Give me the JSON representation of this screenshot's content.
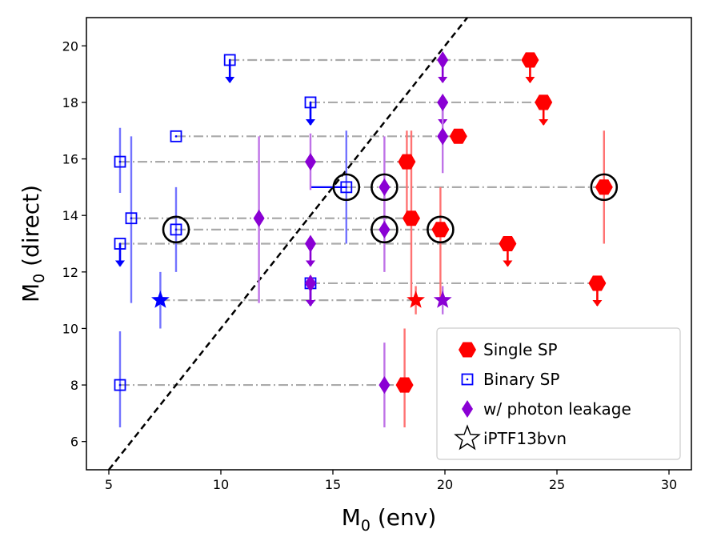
{
  "chart_data": {
    "type": "scatter",
    "title": "",
    "xlabel": "M",
    "xlabel_sub": "0",
    "xlabel_rest": " (env)",
    "ylabel": "M",
    "ylabel_sub": "0",
    "ylabel_rest": " (direct)",
    "xlim": [
      4,
      31
    ],
    "ylim": [
      5,
      21
    ],
    "xticks": [
      5,
      10,
      15,
      20,
      25,
      30
    ],
    "yticks": [
      6,
      8,
      10,
      12,
      14,
      16,
      18,
      20
    ],
    "grid": false,
    "legend_position": "lower-right",
    "diagonal": {
      "x": [
        5,
        21
      ],
      "y": [
        5,
        21
      ],
      "style": "dashed",
      "color": "#000000"
    },
    "colors": {
      "single": "#ff0000",
      "binary": "#0000ff",
      "leakage": "#8a00d4",
      "connector": "#aaaaaa",
      "circle": "#000000"
    },
    "legend": [
      {
        "label": "Single SP",
        "marker": "hexagon",
        "color": "#ff0000"
      },
      {
        "label": "Binary SP",
        "marker": "square",
        "color": "#0000ff"
      },
      {
        "label": "w/ photon leakage",
        "marker": "diamond",
        "color": "#8a00d4"
      },
      {
        "label": "iPTF13bvn",
        "marker": "star-outline",
        "color": "#000000"
      }
    ],
    "connectors": [
      {
        "x1": 10.4,
        "x2": 23.8,
        "y": 19.5
      },
      {
        "x1": 14.0,
        "x2": 24.4,
        "y": 18.0
      },
      {
        "x1": 8.0,
        "x2": 20.6,
        "y": 16.8
      },
      {
        "x1": 5.5,
        "x2": 18.3,
        "y": 15.9
      },
      {
        "x1": 15.6,
        "x2": 27.1,
        "y": 15.0
      },
      {
        "x1": 6.0,
        "x2": 18.5,
        "y": 13.9
      },
      {
        "x1": 8.0,
        "x2": 19.8,
        "y": 13.5
      },
      {
        "x1": 5.5,
        "x2": 22.8,
        "y": 13.0
      },
      {
        "x1": 14.0,
        "x2": 26.8,
        "y": 11.6
      },
      {
        "x1": 7.3,
        "x2": 18.7,
        "y": 11.0
      },
      {
        "x1": 5.5,
        "x2": 18.2,
        "y": 8.0
      }
    ],
    "series": [
      {
        "name": "Single SP",
        "marker": "hexagon",
        "points": [
          {
            "x": 23.8,
            "y": 19.5,
            "upper_limit": true
          },
          {
            "x": 24.4,
            "y": 18.0,
            "upper_limit": true
          },
          {
            "x": 20.6,
            "y": 16.8
          },
          {
            "x": 18.3,
            "y": 15.9,
            "yerr": [
              14.0,
              17.0
            ]
          },
          {
            "x": 27.1,
            "y": 15.0,
            "yerr": [
              13.0,
              17.0
            ],
            "circled": true
          },
          {
            "x": 18.5,
            "y": 13.9,
            "yerr": [
              11.0,
              17.0
            ]
          },
          {
            "x": 19.8,
            "y": 13.5,
            "yerr": [
              11.0,
              15.0
            ],
            "circled": true
          },
          {
            "x": 22.8,
            "y": 13.0,
            "upper_limit": true
          },
          {
            "x": 26.8,
            "y": 11.6,
            "upper_limit": true
          },
          {
            "x": 18.2,
            "y": 8.0,
            "yerr": [
              6.5,
              10.0
            ]
          }
        ]
      },
      {
        "name": "Binary SP",
        "marker": "square",
        "points": [
          {
            "x": 10.4,
            "y": 19.5,
            "upper_limit": true
          },
          {
            "x": 14.0,
            "y": 18.0,
            "upper_limit": true
          },
          {
            "x": 8.0,
            "y": 16.8
          },
          {
            "x": 5.5,
            "y": 15.9,
            "yerr": [
              14.8,
              17.1
            ]
          },
          {
            "x": 15.6,
            "y": 15.0,
            "yerr": [
              13.0,
              17.0
            ],
            "xerr": [
              14.0,
              15.6
            ],
            "circled": true
          },
          {
            "x": 6.0,
            "y": 13.9,
            "yerr": [
              10.9,
              16.8
            ]
          },
          {
            "x": 8.0,
            "y": 13.5,
            "yerr": [
              12.0,
              15.0
            ],
            "circled": true
          },
          {
            "x": 5.5,
            "y": 13.0,
            "upper_limit": true
          },
          {
            "x": 14.0,
            "y": 11.6,
            "upper_limit": true
          },
          {
            "x": 5.5,
            "y": 8.0,
            "yerr": [
              6.5,
              9.9
            ]
          }
        ]
      },
      {
        "name": "w/ photon leakage",
        "marker": "diamond",
        "points": [
          {
            "x": 19.9,
            "y": 19.5,
            "upper_limit": true
          },
          {
            "x": 19.9,
            "y": 18.0,
            "upper_limit": true
          },
          {
            "x": 19.9,
            "y": 16.8,
            "yerr": [
              15.5,
              18.0
            ]
          },
          {
            "x": 14.0,
            "y": 15.9,
            "yerr": [
              14.9,
              16.9
            ]
          },
          {
            "x": 17.3,
            "y": 15.0,
            "yerr": [
              13.5,
              16.8
            ],
            "circled": true
          },
          {
            "x": 11.7,
            "y": 13.9,
            "yerr": [
              10.9,
              16.8
            ]
          },
          {
            "x": 17.3,
            "y": 13.5,
            "yerr": [
              12.0,
              15.0
            ],
            "circled": true
          },
          {
            "x": 14.0,
            "y": 13.0,
            "upper_limit": true
          },
          {
            "x": 14.0,
            "y": 11.6,
            "upper_limit": true
          },
          {
            "x": 17.3,
            "y": 8.0,
            "yerr": [
              6.5,
              9.5
            ]
          }
        ]
      },
      {
        "name": "iPTF13bvn",
        "marker": "star",
        "points": [
          {
            "x": 7.3,
            "y": 11.0,
            "yerr": [
              10.0,
              12.0
            ],
            "color": "#0000ff"
          },
          {
            "x": 18.7,
            "y": 11.0,
            "yerr": [
              10.5,
              11.5
            ],
            "color": "#ff0000"
          },
          {
            "x": 19.9,
            "y": 11.0,
            "yerr": [
              10.5,
              11.5
            ],
            "color": "#8a00d4"
          }
        ]
      }
    ]
  }
}
